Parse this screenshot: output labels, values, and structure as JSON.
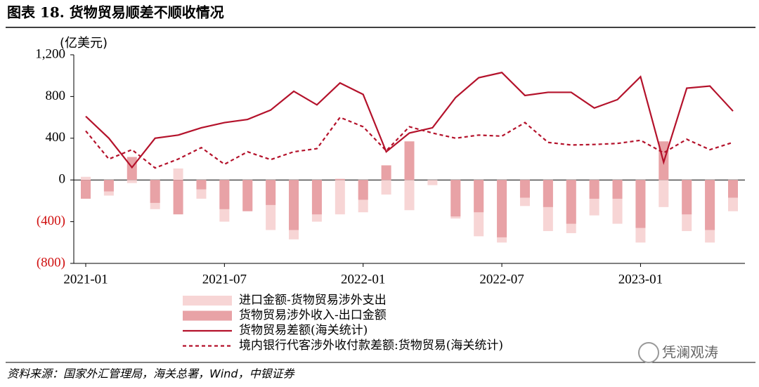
{
  "chart_data": {
    "type": "bar_line",
    "title": "图表 18. 货物贸易顺差不顺收情况",
    "unit_label": "(亿美元)",
    "source": "资料来源：国家外汇管理局，海关总署，Wind，中银证券",
    "watermark": "凭澜观涛",
    "categories": [
      "2021-01",
      null,
      null,
      null,
      null,
      null,
      "2021-07",
      null,
      null,
      null,
      null,
      null,
      "2022-01",
      null,
      null,
      null,
      null,
      null,
      "2022-07",
      null,
      null,
      null,
      null,
      null,
      "2023-01",
      null,
      null,
      null,
      null
    ],
    "series": [
      {
        "name": "进口金额-货物贸易涉外支出",
        "type": "bar",
        "color": "#f7d5d5",
        "values": [
          30,
          -150,
          -30,
          -280,
          110,
          -180,
          -400,
          -290,
          -480,
          -570,
          -400,
          -330,
          -310,
          -140,
          -290,
          -50,
          -370,
          -540,
          -600,
          -250,
          -490,
          -510,
          -340,
          -420,
          -600,
          -260,
          -490,
          -600,
          -300
        ]
      },
      {
        "name": "货物贸易涉外收入-出口金额",
        "type": "bar",
        "color": "#e8a2a6",
        "values": [
          -180,
          -110,
          220,
          -220,
          -330,
          -90,
          -280,
          -300,
          -240,
          -480,
          -330,
          10,
          -190,
          140,
          370,
          0,
          -350,
          -310,
          -550,
          -170,
          -260,
          -420,
          -180,
          -180,
          -460,
          370,
          -330,
          -480,
          -170
        ]
      },
      {
        "name": "货物贸易差额(海关统计)",
        "type": "line",
        "color": "#b4122b",
        "values": [
          610,
          400,
          120,
          400,
          430,
          500,
          550,
          580,
          670,
          850,
          720,
          930,
          820,
          270,
          450,
          500,
          790,
          980,
          1030,
          810,
          840,
          840,
          690,
          770,
          990,
          170,
          880,
          900,
          660
        ]
      },
      {
        "name": "境内银行代客涉外收付款差额:货物贸易(海关统计)",
        "type": "dashed",
        "color": "#b4122b",
        "values": [
          470,
          200,
          290,
          115,
          200,
          310,
          150,
          270,
          195,
          270,
          300,
          600,
          510,
          280,
          510,
          450,
          400,
          430,
          420,
          550,
          360,
          335,
          340,
          350,
          380,
          260,
          390,
          290,
          360
        ]
      }
    ],
    "ylim": [
      -800,
      1200
    ],
    "yticks": [
      {
        "value": -800,
        "label": "(800)"
      },
      {
        "value": -400,
        "label": "(400)"
      },
      0,
      400,
      800,
      {
        "value": 1200,
        "label": "1,200"
      }
    ],
    "negative_tick_color": "#d01010"
  }
}
